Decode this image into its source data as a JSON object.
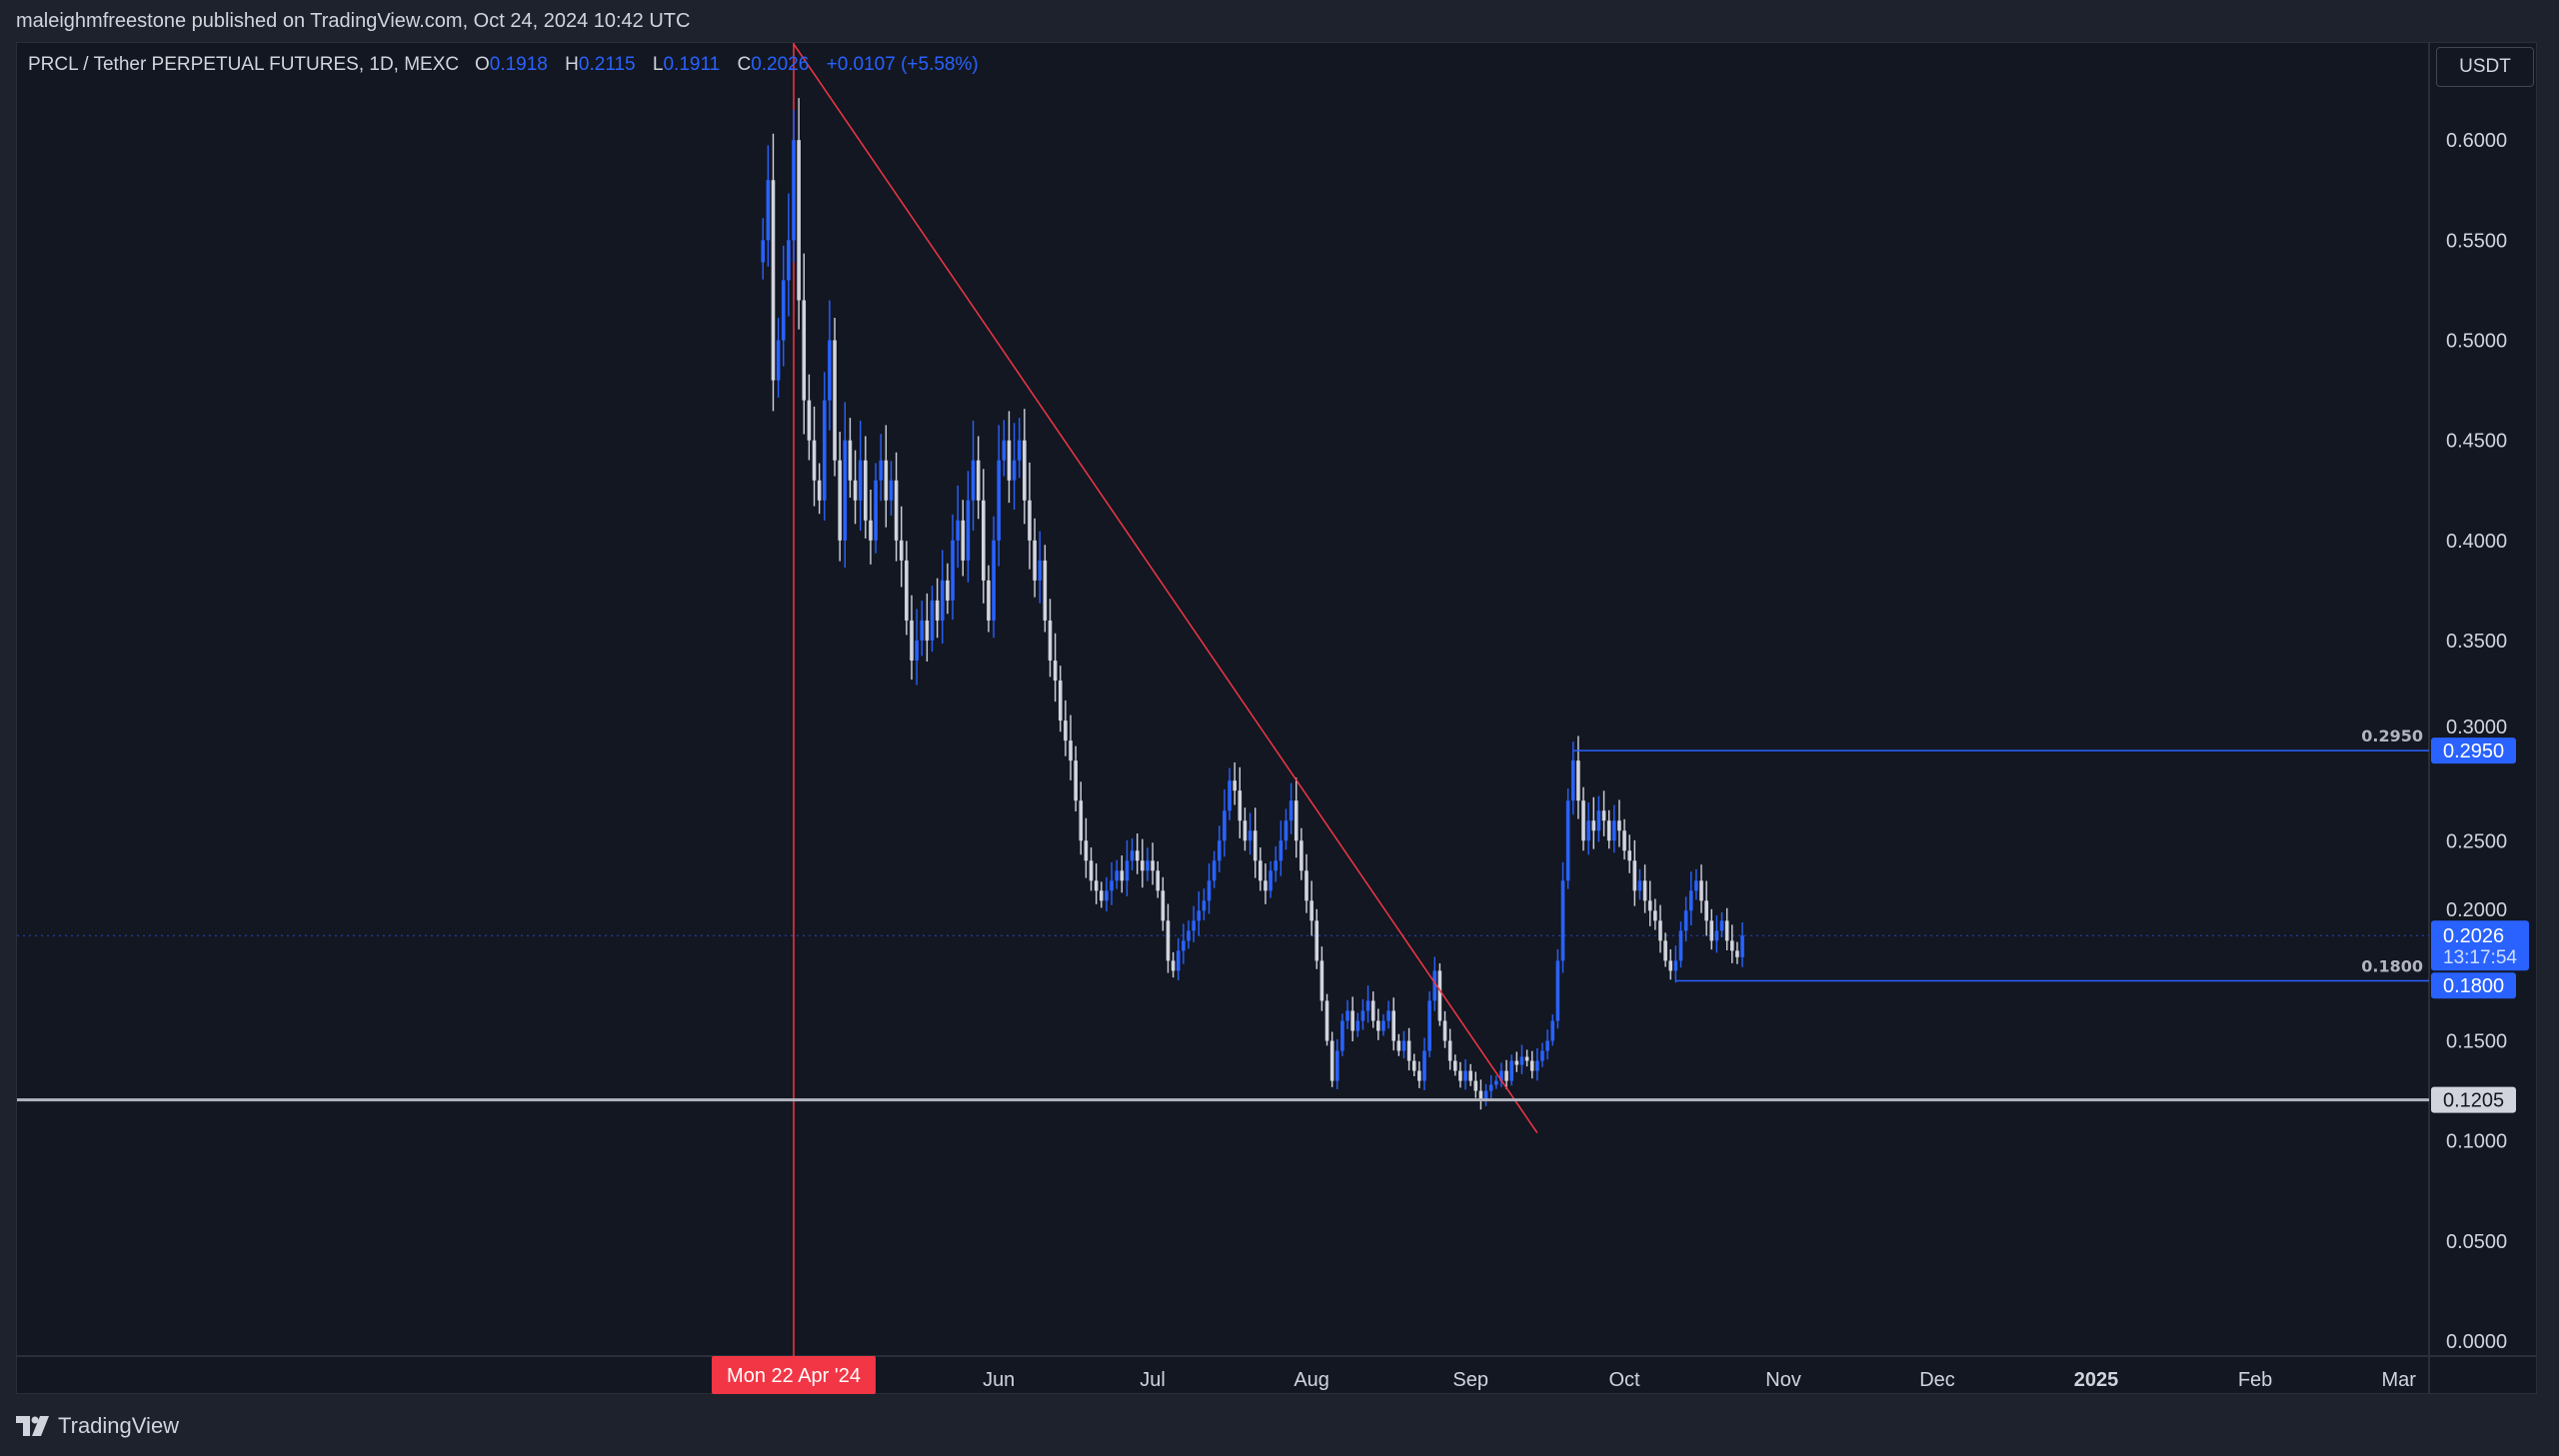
{
  "header": {
    "published": "maleighmfreestone published on TradingView.com, Oct 24, 2024 10:42 UTC"
  },
  "legend": {
    "symbol": "PRCL / Tether PERPETUAL FUTURES, 1D, MEXC",
    "o_label": "O",
    "o": "0.1918",
    "h_label": "H",
    "h": "0.2115",
    "l_label": "L",
    "l": "0.1911",
    "c_label": "C",
    "c": "0.2026",
    "change": "+0.0107 (+5.58%)"
  },
  "currency_button": "USDT",
  "footer": {
    "brand": "TradingView"
  },
  "colors": {
    "up": "#2962ff",
    "down": "#d1d4dc",
    "trendline": "#f23645",
    "support": "#b2b5be",
    "level": "#2962ff",
    "background": "#131722"
  },
  "chart_data": {
    "type": "candlestick",
    "first_date": "2024-04-16",
    "interval": "1D",
    "closes": [
      0.55,
      0.58,
      0.48,
      0.5,
      0.53,
      0.55,
      0.6,
      0.52,
      0.47,
      0.45,
      0.43,
      0.42,
      0.47,
      0.5,
      0.44,
      0.4,
      0.45,
      0.43,
      0.42,
      0.44,
      0.41,
      0.4,
      0.43,
      0.44,
      0.42,
      0.43,
      0.4,
      0.39,
      0.36,
      0.34,
      0.35,
      0.36,
      0.35,
      0.37,
      0.36,
      0.38,
      0.37,
      0.4,
      0.41,
      0.39,
      0.42,
      0.44,
      0.42,
      0.38,
      0.36,
      0.4,
      0.44,
      0.45,
      0.43,
      0.44,
      0.45,
      0.42,
      0.4,
      0.38,
      0.39,
      0.36,
      0.34,
      0.33,
      0.31,
      0.3,
      0.29,
      0.27,
      0.25,
      0.24,
      0.23,
      0.225,
      0.22,
      0.225,
      0.23,
      0.235,
      0.23,
      0.24,
      0.245,
      0.24,
      0.235,
      0.24,
      0.235,
      0.225,
      0.21,
      0.19,
      0.185,
      0.195,
      0.2,
      0.205,
      0.21,
      0.215,
      0.22,
      0.23,
      0.24,
      0.25,
      0.265,
      0.28,
      0.275,
      0.26,
      0.25,
      0.255,
      0.24,
      0.23,
      0.225,
      0.235,
      0.24,
      0.25,
      0.26,
      0.27,
      0.25,
      0.235,
      0.22,
      0.21,
      0.19,
      0.17,
      0.15,
      0.13,
      0.145,
      0.16,
      0.165,
      0.155,
      0.16,
      0.165,
      0.17,
      0.16,
      0.155,
      0.16,
      0.165,
      0.15,
      0.145,
      0.15,
      0.14,
      0.135,
      0.13,
      0.145,
      0.17,
      0.185,
      0.16,
      0.15,
      0.14,
      0.135,
      0.13,
      0.135,
      0.13,
      0.125,
      0.12,
      0.125,
      0.128,
      0.13,
      0.135,
      0.13,
      0.14,
      0.138,
      0.142,
      0.14,
      0.135,
      0.14,
      0.145,
      0.15,
      0.16,
      0.19,
      0.23,
      0.27,
      0.29,
      0.27,
      0.25,
      0.26,
      0.255,
      0.265,
      0.26,
      0.25,
      0.26,
      0.255,
      0.245,
      0.24,
      0.225,
      0.23,
      0.22,
      0.215,
      0.21,
      0.2,
      0.19,
      0.185,
      0.19,
      0.205,
      0.215,
      0.225,
      0.23,
      0.22,
      0.21,
      0.2,
      0.205,
      0.21,
      0.2,
      0.195,
      0.1918,
      0.2026
    ],
    "ylim": [
      0,
      0.63
    ],
    "y_ticks": [
      "0.0000",
      "0.0500",
      "0.1000",
      "0.1500",
      "0.2000",
      "0.2500",
      "0.3000",
      "0.3500",
      "0.4000",
      "0.4500",
      "0.5000",
      "0.5500",
      "0.6000"
    ],
    "x_ticks": [
      {
        "label": "Jun",
        "date": "2024-06-01"
      },
      {
        "label": "Jul",
        "date": "2024-07-01"
      },
      {
        "label": "Aug",
        "date": "2024-08-01"
      },
      {
        "label": "Sep",
        "date": "2024-09-01"
      },
      {
        "label": "Oct",
        "date": "2024-10-01"
      },
      {
        "label": "Nov",
        "date": "2024-11-01"
      },
      {
        "label": "Dec",
        "date": "2024-12-01"
      },
      {
        "label": "2025",
        "date": "2025-01-01"
      },
      {
        "label": "Feb",
        "date": "2025-02-01"
      },
      {
        "label": "Mar",
        "date": "2025-03-01"
      }
    ],
    "crosshair": {
      "date": "2024-04-22",
      "label": "Mon 22 Apr '24"
    },
    "trendline": {
      "from": {
        "date": "2024-04-22",
        "price": 0.648
      },
      "to": {
        "date": "2024-09-14",
        "price": 0.104
      }
    },
    "horizontal_lines": [
      {
        "price": 0.1205,
        "label": "0.1205",
        "start": "full"
      },
      {
        "price": 0.295,
        "label": "0.2950",
        "start": "2024-09-21",
        "text": "0.2950"
      },
      {
        "price": 0.18,
        "label": "0.1800",
        "start": "2024-10-11",
        "text": "0.1800"
      }
    ],
    "last_price": {
      "price": 0.2026,
      "label": "0.2026",
      "countdown": "13:17:54"
    }
  }
}
